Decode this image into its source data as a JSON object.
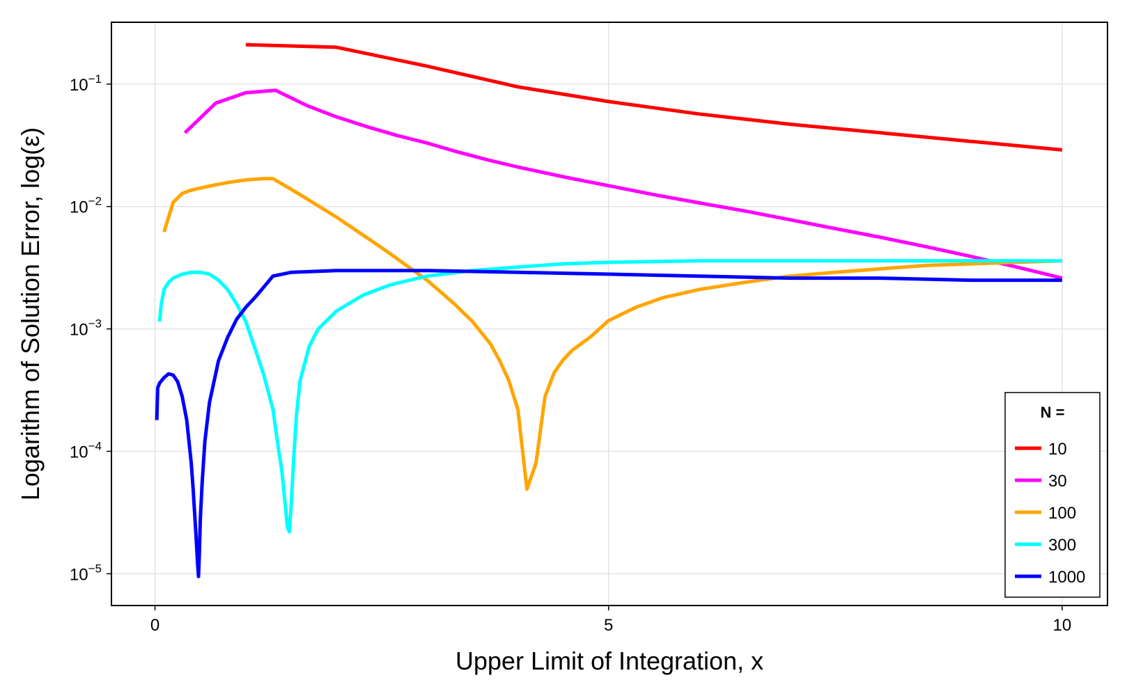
{
  "chart_data": {
    "type": "line",
    "xlabel": "Upper Limit of Integration, x",
    "ylabel": "Logarithm of Solution Error, log(ε)",
    "xscale": "linear",
    "yscale": "log",
    "xlim": [
      -0.48,
      10.5
    ],
    "ylim": [
      5.5e-06,
      0.32
    ],
    "xticks": [
      {
        "value": 0,
        "label": "0"
      },
      {
        "value": 5,
        "label": "5"
      },
      {
        "value": 10,
        "label": "10"
      }
    ],
    "yticks": [
      {
        "value": 0.1,
        "base": "10",
        "exp": "−1"
      },
      {
        "value": 0.01,
        "base": "10",
        "exp": "−2"
      },
      {
        "value": 0.001,
        "base": "10",
        "exp": "−3"
      },
      {
        "value": 0.0001,
        "base": "10",
        "exp": "−4"
      },
      {
        "value": 1e-05,
        "base": "10",
        "exp": "−5"
      }
    ],
    "grid": true,
    "legend": {
      "title": "N =",
      "position": "bottom-right"
    },
    "series": [
      {
        "name": "10",
        "color": "#ff0000",
        "x": [
          1.0,
          2.0,
          3.0,
          4.0,
          5.0,
          6.0,
          7.0,
          8.0,
          9.0,
          10.0
        ],
        "y": [
          0.21,
          0.2,
          0.14,
          0.095,
          0.072,
          0.057,
          0.047,
          0.04,
          0.034,
          0.029
        ]
      },
      {
        "name": "30",
        "color": "#ff00ff",
        "x": [
          0.33,
          0.67,
          1.0,
          1.33,
          1.67,
          2.0,
          2.33,
          2.67,
          3.0,
          3.33,
          3.67,
          4.0,
          4.5,
          5.0,
          5.5,
          6.0,
          6.5,
          7.0,
          7.5,
          8.0,
          8.5,
          9.0,
          9.5,
          10.0
        ],
        "y": [
          0.04,
          0.07,
          0.085,
          0.089,
          0.067,
          0.054,
          0.045,
          0.038,
          0.033,
          0.028,
          0.024,
          0.021,
          0.0175,
          0.0148,
          0.0125,
          0.0107,
          0.0092,
          0.0078,
          0.0066,
          0.0056,
          0.0047,
          0.0039,
          0.0032,
          0.0026
        ]
      },
      {
        "name": "100",
        "color": "#ffa500",
        "x": [
          0.1,
          0.2,
          0.3,
          0.4,
          0.6,
          0.8,
          1.0,
          1.2,
          1.3,
          1.6,
          2.0,
          2.5,
          3.0,
          3.3,
          3.5,
          3.7,
          3.8,
          3.9,
          4.0,
          4.1,
          4.2,
          4.3,
          4.4,
          4.5,
          4.6,
          4.8,
          5.0,
          5.3,
          5.6,
          6.0,
          6.5,
          7.0,
          7.5,
          8.0,
          8.5,
          9.0,
          9.5,
          10.0
        ],
        "y": [
          0.0062,
          0.0108,
          0.0128,
          0.0136,
          0.0147,
          0.0157,
          0.0165,
          0.0169,
          0.0169,
          0.0125,
          0.0082,
          0.0046,
          0.0025,
          0.0016,
          0.00115,
          0.00075,
          0.00055,
          0.00038,
          0.00022,
          4.9e-05,
          8e-05,
          0.00028,
          0.00044,
          0.00056,
          0.00067,
          0.00086,
          0.00117,
          0.0015,
          0.0018,
          0.0021,
          0.0024,
          0.0027,
          0.0029,
          0.0031,
          0.0033,
          0.0034,
          0.0035,
          0.0036
        ]
      },
      {
        "name": "300",
        "color": "#00ffff",
        "x": [
          0.05,
          0.07,
          0.1,
          0.15,
          0.2,
          0.3,
          0.4,
          0.5,
          0.6,
          0.7,
          0.8,
          0.9,
          1.0,
          1.1,
          1.2,
          1.3,
          1.35,
          1.4,
          1.43,
          1.46,
          1.48,
          1.5,
          1.53,
          1.56,
          1.6,
          1.7,
          1.8,
          2.0,
          2.3,
          2.6,
          3.0,
          3.5,
          4.0,
          4.5,
          5.0,
          6.0,
          7.0,
          8.0,
          9.0,
          10.0
        ],
        "y": [
          0.00115,
          0.0016,
          0.0021,
          0.0024,
          0.0026,
          0.0028,
          0.0029,
          0.0029,
          0.0028,
          0.0025,
          0.0021,
          0.0016,
          0.00115,
          0.0007,
          0.00042,
          0.00022,
          0.00012,
          6.8e-05,
          4e-05,
          2.4e-05,
          2.2e-05,
          3.5e-05,
          9e-05,
          0.0002,
          0.00038,
          0.00072,
          0.001,
          0.0014,
          0.0019,
          0.0023,
          0.0027,
          0.003,
          0.0032,
          0.0034,
          0.0035,
          0.0036,
          0.0036,
          0.0036,
          0.0036,
          0.0036
        ]
      },
      {
        "name": "1000",
        "color": "#0000ff",
        "x": [
          0.02,
          0.03,
          0.05,
          0.1,
          0.15,
          0.2,
          0.25,
          0.3,
          0.35,
          0.4,
          0.42,
          0.45,
          0.47,
          0.48,
          0.49,
          0.5,
          0.52,
          0.55,
          0.6,
          0.7,
          0.8,
          0.9,
          1.0,
          1.1,
          1.2,
          1.3,
          1.5,
          2.0,
          2.5,
          3.0,
          4.0,
          5.0,
          6.0,
          7.0,
          8.0,
          9.0,
          10.0
        ],
        "y": [
          0.00018,
          0.00033,
          0.00036,
          0.0004,
          0.00043,
          0.00042,
          0.00037,
          0.00028,
          0.00018,
          8e-05,
          5e-05,
          2.2e-05,
          1.2e-05,
          9.5e-06,
          1.5e-05,
          2.8e-05,
          5.5e-05,
          0.00012,
          0.00025,
          0.00055,
          0.00085,
          0.0012,
          0.0015,
          0.0018,
          0.0022,
          0.0027,
          0.0029,
          0.003,
          0.003,
          0.003,
          0.0029,
          0.0028,
          0.0027,
          0.0026,
          0.0026,
          0.0025,
          0.0025
        ]
      }
    ]
  }
}
